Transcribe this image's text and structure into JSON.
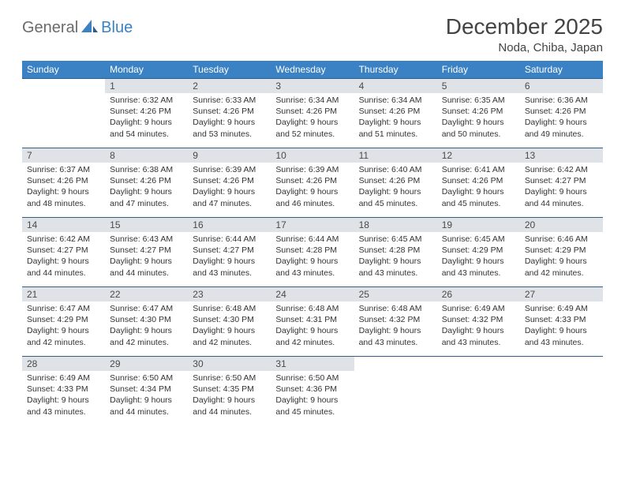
{
  "brand": {
    "part1": "General",
    "part2": "Blue"
  },
  "title": "December 2025",
  "location": "Noda, Chiba, Japan",
  "colors": {
    "header_bg": "#3b82c4",
    "header_text": "#ffffff",
    "daynum_bg": "#dfe3e7",
    "rule": "#2f5e88",
    "brand_gray": "#6b6b6b",
    "brand_blue": "#3b82c4"
  },
  "weekdays": [
    "Sunday",
    "Monday",
    "Tuesday",
    "Wednesday",
    "Thursday",
    "Friday",
    "Saturday"
  ],
  "weeks": [
    [
      null,
      {
        "n": "1",
        "sr": "Sunrise: 6:32 AM",
        "ss": "Sunset: 4:26 PM",
        "dl": "Daylight: 9 hours and 54 minutes."
      },
      {
        "n": "2",
        "sr": "Sunrise: 6:33 AM",
        "ss": "Sunset: 4:26 PM",
        "dl": "Daylight: 9 hours and 53 minutes."
      },
      {
        "n": "3",
        "sr": "Sunrise: 6:34 AM",
        "ss": "Sunset: 4:26 PM",
        "dl": "Daylight: 9 hours and 52 minutes."
      },
      {
        "n": "4",
        "sr": "Sunrise: 6:34 AM",
        "ss": "Sunset: 4:26 PM",
        "dl": "Daylight: 9 hours and 51 minutes."
      },
      {
        "n": "5",
        "sr": "Sunrise: 6:35 AM",
        "ss": "Sunset: 4:26 PM",
        "dl": "Daylight: 9 hours and 50 minutes."
      },
      {
        "n": "6",
        "sr": "Sunrise: 6:36 AM",
        "ss": "Sunset: 4:26 PM",
        "dl": "Daylight: 9 hours and 49 minutes."
      }
    ],
    [
      {
        "n": "7",
        "sr": "Sunrise: 6:37 AM",
        "ss": "Sunset: 4:26 PM",
        "dl": "Daylight: 9 hours and 48 minutes."
      },
      {
        "n": "8",
        "sr": "Sunrise: 6:38 AM",
        "ss": "Sunset: 4:26 PM",
        "dl": "Daylight: 9 hours and 47 minutes."
      },
      {
        "n": "9",
        "sr": "Sunrise: 6:39 AM",
        "ss": "Sunset: 4:26 PM",
        "dl": "Daylight: 9 hours and 47 minutes."
      },
      {
        "n": "10",
        "sr": "Sunrise: 6:39 AM",
        "ss": "Sunset: 4:26 PM",
        "dl": "Daylight: 9 hours and 46 minutes."
      },
      {
        "n": "11",
        "sr": "Sunrise: 6:40 AM",
        "ss": "Sunset: 4:26 PM",
        "dl": "Daylight: 9 hours and 45 minutes."
      },
      {
        "n": "12",
        "sr": "Sunrise: 6:41 AM",
        "ss": "Sunset: 4:26 PM",
        "dl": "Daylight: 9 hours and 45 minutes."
      },
      {
        "n": "13",
        "sr": "Sunrise: 6:42 AM",
        "ss": "Sunset: 4:27 PM",
        "dl": "Daylight: 9 hours and 44 minutes."
      }
    ],
    [
      {
        "n": "14",
        "sr": "Sunrise: 6:42 AM",
        "ss": "Sunset: 4:27 PM",
        "dl": "Daylight: 9 hours and 44 minutes."
      },
      {
        "n": "15",
        "sr": "Sunrise: 6:43 AM",
        "ss": "Sunset: 4:27 PM",
        "dl": "Daylight: 9 hours and 44 minutes."
      },
      {
        "n": "16",
        "sr": "Sunrise: 6:44 AM",
        "ss": "Sunset: 4:27 PM",
        "dl": "Daylight: 9 hours and 43 minutes."
      },
      {
        "n": "17",
        "sr": "Sunrise: 6:44 AM",
        "ss": "Sunset: 4:28 PM",
        "dl": "Daylight: 9 hours and 43 minutes."
      },
      {
        "n": "18",
        "sr": "Sunrise: 6:45 AM",
        "ss": "Sunset: 4:28 PM",
        "dl": "Daylight: 9 hours and 43 minutes."
      },
      {
        "n": "19",
        "sr": "Sunrise: 6:45 AM",
        "ss": "Sunset: 4:29 PM",
        "dl": "Daylight: 9 hours and 43 minutes."
      },
      {
        "n": "20",
        "sr": "Sunrise: 6:46 AM",
        "ss": "Sunset: 4:29 PM",
        "dl": "Daylight: 9 hours and 42 minutes."
      }
    ],
    [
      {
        "n": "21",
        "sr": "Sunrise: 6:47 AM",
        "ss": "Sunset: 4:29 PM",
        "dl": "Daylight: 9 hours and 42 minutes."
      },
      {
        "n": "22",
        "sr": "Sunrise: 6:47 AM",
        "ss": "Sunset: 4:30 PM",
        "dl": "Daylight: 9 hours and 42 minutes."
      },
      {
        "n": "23",
        "sr": "Sunrise: 6:48 AM",
        "ss": "Sunset: 4:30 PM",
        "dl": "Daylight: 9 hours and 42 minutes."
      },
      {
        "n": "24",
        "sr": "Sunrise: 6:48 AM",
        "ss": "Sunset: 4:31 PM",
        "dl": "Daylight: 9 hours and 42 minutes."
      },
      {
        "n": "25",
        "sr": "Sunrise: 6:48 AM",
        "ss": "Sunset: 4:32 PM",
        "dl": "Daylight: 9 hours and 43 minutes."
      },
      {
        "n": "26",
        "sr": "Sunrise: 6:49 AM",
        "ss": "Sunset: 4:32 PM",
        "dl": "Daylight: 9 hours and 43 minutes."
      },
      {
        "n": "27",
        "sr": "Sunrise: 6:49 AM",
        "ss": "Sunset: 4:33 PM",
        "dl": "Daylight: 9 hours and 43 minutes."
      }
    ],
    [
      {
        "n": "28",
        "sr": "Sunrise: 6:49 AM",
        "ss": "Sunset: 4:33 PM",
        "dl": "Daylight: 9 hours and 43 minutes."
      },
      {
        "n": "29",
        "sr": "Sunrise: 6:50 AM",
        "ss": "Sunset: 4:34 PM",
        "dl": "Daylight: 9 hours and 44 minutes."
      },
      {
        "n": "30",
        "sr": "Sunrise: 6:50 AM",
        "ss": "Sunset: 4:35 PM",
        "dl": "Daylight: 9 hours and 44 minutes."
      },
      {
        "n": "31",
        "sr": "Sunrise: 6:50 AM",
        "ss": "Sunset: 4:36 PM",
        "dl": "Daylight: 9 hours and 45 minutes."
      },
      null,
      null,
      null
    ]
  ]
}
